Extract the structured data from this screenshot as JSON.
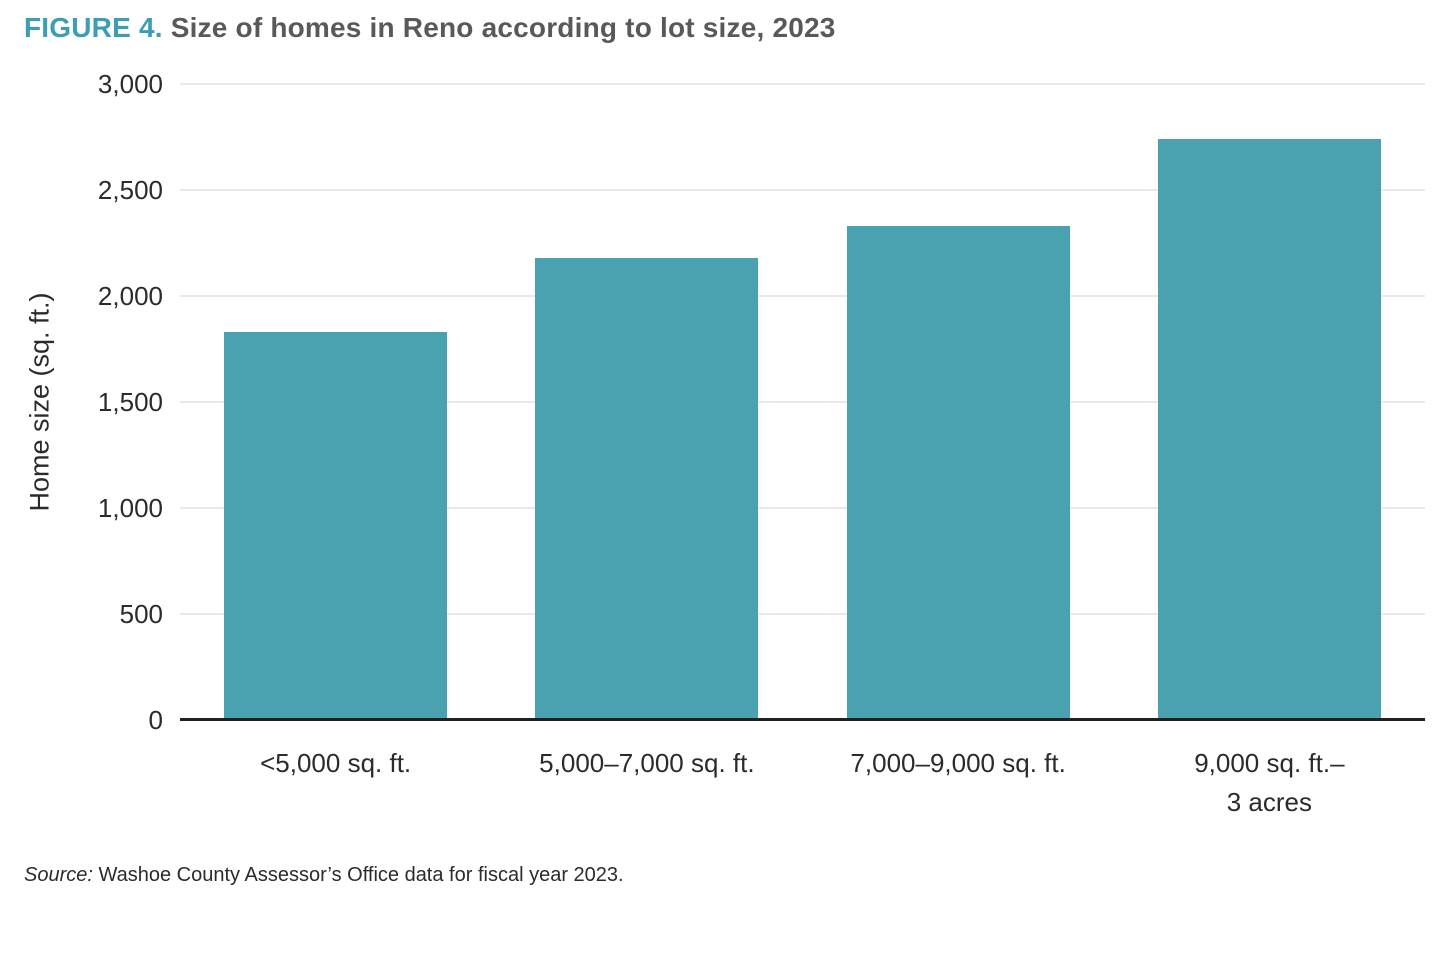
{
  "title": {
    "prefix": "FIGURE 4.",
    "text": "Size of homes in Reno according to lot size, 2023"
  },
  "source": {
    "label": "Source:",
    "text": "Washoe County Assessor’s Office data for fiscal year 2023."
  },
  "colors": {
    "bar": "#4AA2B0",
    "title_prefix": "#3D9DB4",
    "title_text": "#58595B",
    "gridline": "#E9E9E9",
    "axis_line": "#221F20",
    "tick_text": "#2B2B2B"
  },
  "chart_data": {
    "type": "bar",
    "title": "Size of homes in Reno according to lot size, 2023",
    "categories": [
      "<5,000 sq. ft.",
      "5,000–7,000 sq. ft.",
      "7,000–9,000 sq. ft.",
      "9,000 sq. ft.–\n3 acres"
    ],
    "values": [
      1830,
      2180,
      2330,
      2740
    ],
    "xlabel": "",
    "ylabel": "Home size (sq. ft.)",
    "ylim": [
      0,
      3000
    ],
    "yticks": [
      0,
      500,
      1000,
      1500,
      2000,
      2500,
      3000
    ],
    "ytick_labels": [
      "0",
      "500",
      "1,000",
      "1,500",
      "2,000",
      "2,500",
      "3,000"
    ],
    "grid": true,
    "legend": false
  }
}
